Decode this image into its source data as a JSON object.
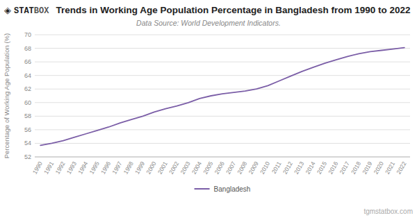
{
  "chart_data": {
    "type": "line",
    "title": "Trends in Working Age Population Percentage in Bangladesh from 1990 to 2022",
    "subtitle": "Data Source: World Development Indicators.",
    "ylabel": "Percentage of Working Age Population (%)",
    "annotations": [
      "◈",
      "STAT",
      "BOX",
      "tgmstatbox.com"
    ],
    "x": [
      1990,
      1991,
      1992,
      1993,
      1994,
      1995,
      1996,
      1997,
      1998,
      1999,
      2000,
      2001,
      2002,
      2003,
      2004,
      2005,
      2006,
      2007,
      2008,
      2009,
      2010,
      2011,
      2012,
      2013,
      2014,
      2015,
      2016,
      2017,
      2018,
      2019,
      2020,
      2021,
      2022
    ],
    "series": [
      {
        "name": "Bangladesh",
        "color": "#7B5EA7",
        "values": [
          53.7,
          54.0,
          54.4,
          54.9,
          55.4,
          55.9,
          56.4,
          57.0,
          57.5,
          58.0,
          58.6,
          59.1,
          59.5,
          60.0,
          60.6,
          61.0,
          61.3,
          61.5,
          61.7,
          62.0,
          62.5,
          63.2,
          63.9,
          64.6,
          65.2,
          65.8,
          66.3,
          66.8,
          67.2,
          67.5,
          67.7,
          67.9,
          68.1
        ]
      }
    ],
    "xlim": [
      1989.5,
      2022.5
    ],
    "xticks": [
      1990,
      1991,
      1992,
      1993,
      1994,
      1995,
      1996,
      1997,
      1998,
      1999,
      2000,
      2001,
      2002,
      2003,
      2004,
      2005,
      2006,
      2007,
      2008,
      2009,
      2010,
      2011,
      2012,
      2013,
      2014,
      2015,
      2016,
      2017,
      2018,
      2019,
      2020,
      2021,
      2022
    ],
    "ylim": [
      52,
      70
    ],
    "yticks": [
      52,
      54,
      56,
      58,
      60,
      62,
      64,
      66,
      68,
      70
    ],
    "grid": true,
    "legend": "bottom"
  }
}
